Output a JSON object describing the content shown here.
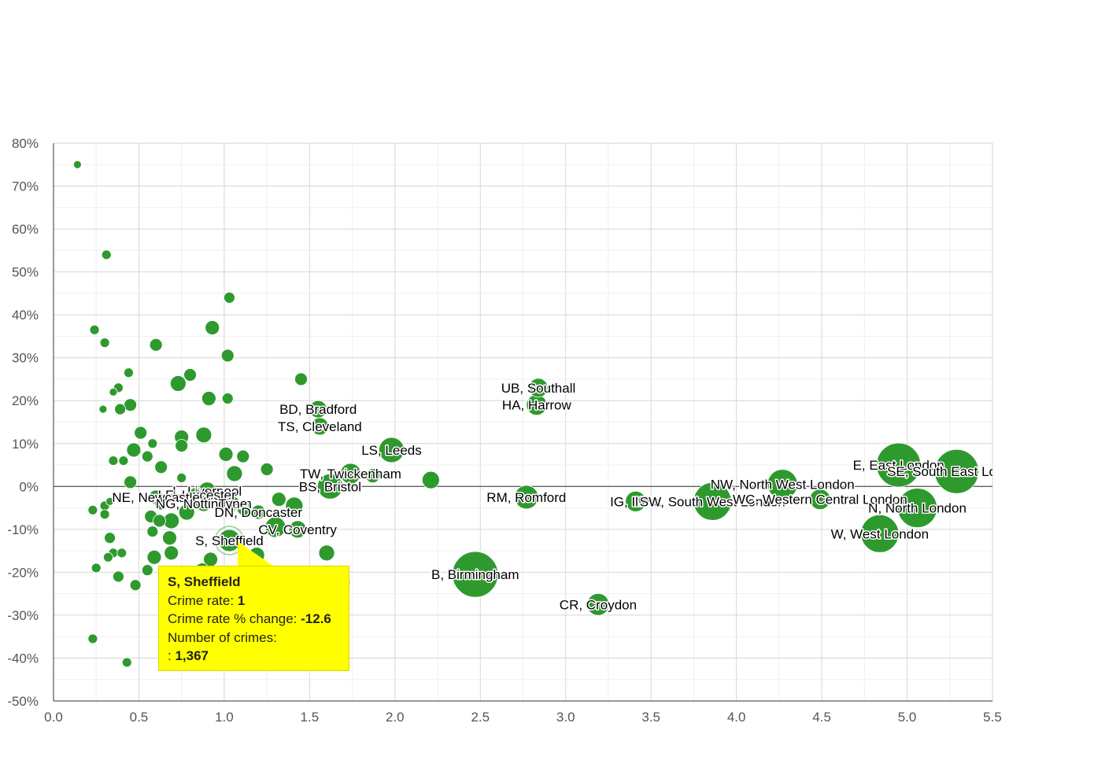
{
  "chart_data": {
    "type": "scatter",
    "bubble": true,
    "xlim": [
      0,
      5.5
    ],
    "ylim": [
      -50,
      80
    ],
    "x_ticks": [
      "0.0",
      "0.5",
      "1.0",
      "1.5",
      "2.0",
      "2.5",
      "3.0",
      "3.5",
      "4.0",
      "4.5",
      "5.0",
      "5.5"
    ],
    "y_ticks": [
      "80%",
      "70%",
      "60%",
      "50%",
      "40%",
      "30%",
      "20%",
      "10%",
      "0%",
      "-10%",
      "-20%",
      "-30%",
      "-40%",
      "-50%"
    ],
    "grid": true,
    "point_color": "#2e9a2e",
    "points": [
      {
        "x": 0.14,
        "y": 75,
        "r": 5
      },
      {
        "x": 0.31,
        "y": 54,
        "r": 6
      },
      {
        "x": 0.24,
        "y": 36.5,
        "r": 6
      },
      {
        "x": 0.3,
        "y": 33.5,
        "r": 6
      },
      {
        "x": 0.6,
        "y": 33,
        "r": 8
      },
      {
        "x": 0.93,
        "y": 37,
        "r": 9
      },
      {
        "x": 1.03,
        "y": 44,
        "r": 7
      },
      {
        "x": 1.02,
        "y": 30.5,
        "r": 8
      },
      {
        "x": 0.44,
        "y": 26.5,
        "r": 6
      },
      {
        "x": 0.8,
        "y": 26,
        "r": 8
      },
      {
        "x": 0.73,
        "y": 24,
        "r": 10
      },
      {
        "x": 0.38,
        "y": 23,
        "r": 6
      },
      {
        "x": 0.35,
        "y": 22,
        "r": 5
      },
      {
        "x": 0.91,
        "y": 20.5,
        "r": 9
      },
      {
        "x": 1.02,
        "y": 20.5,
        "r": 7
      },
      {
        "x": 0.45,
        "y": 19,
        "r": 8
      },
      {
        "x": 0.39,
        "y": 18,
        "r": 7
      },
      {
        "x": 0.29,
        "y": 18,
        "r": 5
      },
      {
        "x": 1.45,
        "y": 25,
        "r": 8
      },
      {
        "x": 0.88,
        "y": 12,
        "r": 10
      },
      {
        "x": 0.75,
        "y": 11.5,
        "r": 9
      },
      {
        "x": 0.51,
        "y": 12.5,
        "r": 8
      },
      {
        "x": 0.58,
        "y": 10,
        "r": 6
      },
      {
        "x": 0.47,
        "y": 8.5,
        "r": 9
      },
      {
        "x": 0.75,
        "y": 9.5,
        "r": 8
      },
      {
        "x": 1.01,
        "y": 7.5,
        "r": 9
      },
      {
        "x": 1.11,
        "y": 7,
        "r": 8
      },
      {
        "x": 0.55,
        "y": 7,
        "r": 7
      },
      {
        "x": 0.35,
        "y": 6,
        "r": 6
      },
      {
        "x": 0.41,
        "y": 6,
        "r": 6
      },
      {
        "x": 0.63,
        "y": 4.5,
        "r": 8
      },
      {
        "x": 1.25,
        "y": 4,
        "r": 8
      },
      {
        "x": 1.06,
        "y": 3,
        "r": 10
      },
      {
        "x": 0.75,
        "y": 2,
        "r": 6
      },
      {
        "x": 0.45,
        "y": 1,
        "r": 8
      },
      {
        "x": 1.55,
        "y": 18,
        "r": 11,
        "label": "BD, Bradford"
      },
      {
        "x": 1.56,
        "y": 14,
        "r": 11,
        "label": "TS, Cleveland"
      },
      {
        "x": 1.98,
        "y": 8.5,
        "r": 16,
        "label": "LS, Leeds"
      },
      {
        "x": 2.21,
        "y": 1.5,
        "r": 11
      },
      {
        "x": 1.87,
        "y": 2.5,
        "r": 9
      },
      {
        "x": 1.74,
        "y": 3,
        "r": 13,
        "label": "TW, Twickenham"
      },
      {
        "x": 1.62,
        "y": 0,
        "r": 16,
        "label": "BS, Bristol"
      },
      {
        "x": 0.9,
        "y": -1,
        "r": 11,
        "label": "L, Liverpool"
      },
      {
        "x": 0.84,
        "y": -2,
        "r": 10,
        "label": "LE, Leicester"
      },
      {
        "x": 0.6,
        "y": -2.5,
        "r": 9,
        "label": "NE, Newcastle"
      },
      {
        "x": 0.88,
        "y": -4,
        "r": 10,
        "label": "NG, Nottingham"
      },
      {
        "x": 1.05,
        "y": -4,
        "r": 9,
        "label": "Tyne"
      },
      {
        "x": 0.33,
        "y": -3.5,
        "r": 5
      },
      {
        "x": 0.3,
        "y": -4.5,
        "r": 6
      },
      {
        "x": 0.63,
        "y": -4,
        "r": 8
      },
      {
        "x": 1.12,
        "y": -5,
        "r": 10
      },
      {
        "x": 1.32,
        "y": -3,
        "r": 9
      },
      {
        "x": 1.41,
        "y": -4.5,
        "r": 11
      },
      {
        "x": 0.23,
        "y": -5.5,
        "r": 6
      },
      {
        "x": 0.3,
        "y": -6.5,
        "r": 6
      },
      {
        "x": 0.78,
        "y": -6,
        "r": 10
      },
      {
        "x": 1.2,
        "y": -6,
        "r": 9,
        "label": "DN, Doncaster"
      },
      {
        "x": 0.57,
        "y": -7,
        "r": 8
      },
      {
        "x": 0.62,
        "y": -8,
        "r": 8
      },
      {
        "x": 0.69,
        "y": -8,
        "r": 10
      },
      {
        "x": 1.3,
        "y": -9.5,
        "r": 13
      },
      {
        "x": 1.43,
        "y": -10,
        "r": 11,
        "label": "CV, Coventry"
      },
      {
        "x": 0.58,
        "y": -10.5,
        "r": 7
      },
      {
        "x": 0.33,
        "y": -12,
        "r": 7
      },
      {
        "x": 0.68,
        "y": -12,
        "r": 9
      },
      {
        "x": 1.03,
        "y": -12.6,
        "r": 14,
        "label": "S, Sheffield",
        "highlight": true
      },
      {
        "x": 1.19,
        "y": -16,
        "r": 10
      },
      {
        "x": 1.6,
        "y": -15.5,
        "r": 10
      },
      {
        "x": 0.35,
        "y": -15.5,
        "r": 6
      },
      {
        "x": 0.4,
        "y": -15.5,
        "r": 6
      },
      {
        "x": 0.32,
        "y": -16.5,
        "r": 6
      },
      {
        "x": 0.59,
        "y": -16.5,
        "r": 9
      },
      {
        "x": 0.69,
        "y": -15.5,
        "r": 9
      },
      {
        "x": 0.92,
        "y": -17,
        "r": 9
      },
      {
        "x": 0.25,
        "y": -19,
        "r": 6
      },
      {
        "x": 0.55,
        "y": -19.5,
        "r": 7
      },
      {
        "x": 0.38,
        "y": -21,
        "r": 7
      },
      {
        "x": 0.48,
        "y": -23,
        "r": 7
      },
      {
        "x": 0.87,
        "y": -19.5,
        "r": 9
      },
      {
        "x": 1.7,
        "y": -22.5,
        "r": 8
      },
      {
        "x": 0.23,
        "y": -35.5,
        "r": 6
      },
      {
        "x": 0.43,
        "y": -41,
        "r": 6
      },
      {
        "x": 2.47,
        "y": -20.5,
        "r": 29,
        "label": "B, Birmingham"
      },
      {
        "x": 2.84,
        "y": 23,
        "r": 12,
        "label": "UB, Southall"
      },
      {
        "x": 2.83,
        "y": 19,
        "r": 13,
        "label": "HA, Harrow"
      },
      {
        "x": 2.77,
        "y": -2.5,
        "r": 15,
        "label": "RM, Romford"
      },
      {
        "x": 3.19,
        "y": -27.5,
        "r": 14,
        "label": "CR, Croydon"
      },
      {
        "x": 3.41,
        "y": -3.5,
        "r": 13,
        "label": "IG, Ilford"
      },
      {
        "x": 3.86,
        "y": -3.5,
        "r": 24,
        "label": "SW, South West London"
      },
      {
        "x": 4.27,
        "y": 0.5,
        "r": 19,
        "label": "NW, North West London"
      },
      {
        "x": 4.49,
        "y": -3,
        "r": 13,
        "label": "WC, Western Central London"
      },
      {
        "x": 4.95,
        "y": 5,
        "r": 28,
        "label": "E, East London"
      },
      {
        "x": 5.29,
        "y": 3.5,
        "r": 28,
        "label": "SE, South East London"
      },
      {
        "x": 5.06,
        "y": -5,
        "r": 25,
        "label": "N, North London"
      },
      {
        "x": 4.84,
        "y": -11,
        "r": 24,
        "label": "W, West London"
      }
    ]
  },
  "tooltip": {
    "title": "S, Sheffield",
    "rate_label": "Crime rate: ",
    "rate_value": "1",
    "change_label": "Crime rate % change: ",
    "change_value": "-12.6",
    "count_label": "Number of crimes:",
    "count_prefix": ": ",
    "count_value": "1,367"
  }
}
